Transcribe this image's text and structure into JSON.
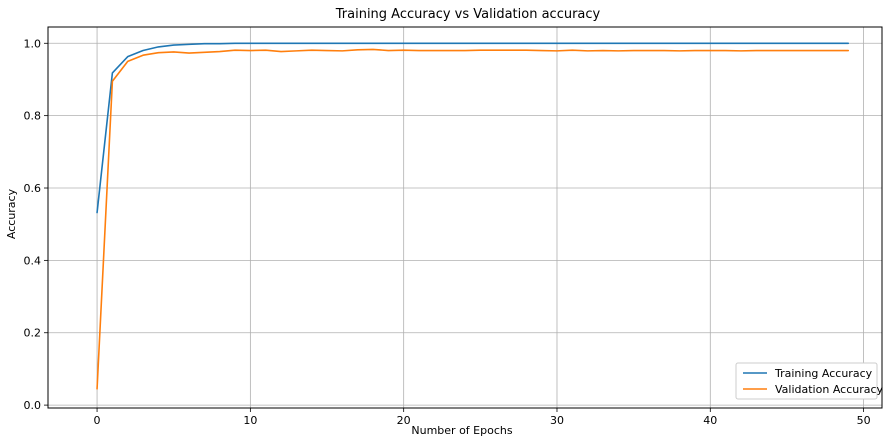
{
  "chart_data": {
    "type": "line",
    "title": "Training Accuracy vs Validation accuracy",
    "xlabel": "Number of Epochs",
    "ylabel": "Accuracy",
    "xlim": [
      -3.2,
      51.2
    ],
    "ylim": [
      -0.008,
      1.045
    ],
    "xticks": [
      0,
      10,
      20,
      30,
      40,
      50
    ],
    "xtick_labels": [
      "0",
      "10",
      "20",
      "30",
      "40",
      "50"
    ],
    "yticks": [
      0.0,
      0.2,
      0.4,
      0.6,
      0.8,
      1.0
    ],
    "ytick_labels": [
      "0.0",
      "0.2",
      "0.4",
      "0.6",
      "0.8",
      "1.0"
    ],
    "grid": true,
    "legend_position": "lower-right",
    "x": [
      0,
      1,
      2,
      3,
      4,
      5,
      6,
      7,
      8,
      9,
      10,
      11,
      12,
      13,
      14,
      15,
      16,
      17,
      18,
      19,
      20,
      21,
      22,
      23,
      24,
      25,
      26,
      27,
      28,
      29,
      30,
      31,
      32,
      33,
      34,
      35,
      36,
      37,
      38,
      39,
      40,
      41,
      42,
      43,
      44,
      45,
      46,
      47,
      48,
      49
    ],
    "series": [
      {
        "name": "Training Accuracy",
        "color": "#1f77b4",
        "values": [
          0.532,
          0.918,
          0.963,
          0.98,
          0.99,
          0.995,
          0.997,
          0.999,
          0.999,
          1.0,
          1.0,
          1.0,
          1.0,
          1.0,
          1.0,
          1.0,
          1.0,
          1.0,
          1.0,
          1.0,
          1.0,
          1.0,
          1.0,
          1.0,
          1.0,
          1.0,
          1.0,
          1.0,
          1.0,
          1.0,
          1.0,
          1.0,
          1.0,
          1.0,
          1.0,
          1.0,
          1.0,
          1.0,
          1.0,
          1.0,
          1.0,
          1.0,
          1.0,
          1.0,
          1.0,
          1.0,
          1.0,
          1.0,
          1.0,
          1.0
        ]
      },
      {
        "name": "Validation Accuracy",
        "color": "#ff7f0e",
        "values": [
          0.045,
          0.895,
          0.95,
          0.967,
          0.974,
          0.976,
          0.973,
          0.975,
          0.977,
          0.981,
          0.98,
          0.981,
          0.977,
          0.979,
          0.981,
          0.98,
          0.979,
          0.982,
          0.983,
          0.98,
          0.981,
          0.98,
          0.98,
          0.98,
          0.98,
          0.981,
          0.981,
          0.981,
          0.981,
          0.98,
          0.979,
          0.981,
          0.979,
          0.98,
          0.979,
          0.98,
          0.98,
          0.98,
          0.979,
          0.98,
          0.98,
          0.98,
          0.979,
          0.98,
          0.98,
          0.98,
          0.98,
          0.98,
          0.98,
          0.98
        ]
      }
    ]
  }
}
